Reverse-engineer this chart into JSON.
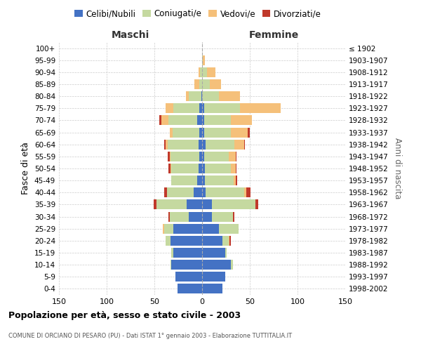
{
  "age_groups": [
    "0-4",
    "5-9",
    "10-14",
    "15-19",
    "20-24",
    "25-29",
    "30-34",
    "35-39",
    "40-44",
    "45-49",
    "50-54",
    "55-59",
    "60-64",
    "65-69",
    "70-74",
    "75-79",
    "80-84",
    "85-89",
    "90-94",
    "95-99",
    "100+"
  ],
  "birth_years": [
    "1998-2002",
    "1993-1997",
    "1988-1992",
    "1983-1987",
    "1978-1982",
    "1973-1977",
    "1968-1972",
    "1963-1967",
    "1958-1962",
    "1953-1957",
    "1948-1952",
    "1943-1947",
    "1938-1942",
    "1933-1937",
    "1928-1932",
    "1923-1927",
    "1918-1922",
    "1913-1917",
    "1908-1912",
    "1903-1907",
    "≤ 1902"
  ],
  "colors": {
    "celibi": "#4472c4",
    "coniugati": "#c5d9a0",
    "vedovi": "#f5c07a",
    "divorziati": "#c0392b"
  },
  "maschi": {
    "celibi": [
      26,
      28,
      32,
      30,
      33,
      30,
      14,
      16,
      9,
      5,
      4,
      3,
      4,
      3,
      5,
      3,
      1,
      0,
      0,
      0,
      0
    ],
    "coniugati": [
      0,
      0,
      1,
      2,
      5,
      10,
      20,
      32,
      28,
      27,
      28,
      30,
      32,
      28,
      30,
      27,
      13,
      3,
      2,
      0,
      0
    ],
    "vedovi": [
      0,
      0,
      0,
      0,
      0,
      1,
      0,
      0,
      0,
      0,
      1,
      1,
      2,
      3,
      8,
      8,
      3,
      5,
      2,
      0,
      0
    ],
    "divorziati": [
      0,
      0,
      0,
      0,
      0,
      0,
      1,
      3,
      3,
      0,
      2,
      2,
      2,
      0,
      2,
      0,
      0,
      0,
      0,
      0,
      0
    ]
  },
  "femmine": {
    "celibi": [
      21,
      24,
      30,
      24,
      21,
      18,
      10,
      10,
      4,
      3,
      3,
      2,
      4,
      2,
      2,
      2,
      0,
      0,
      0,
      0,
      0
    ],
    "coniugati": [
      0,
      0,
      2,
      2,
      7,
      20,
      22,
      46,
      40,
      30,
      27,
      26,
      30,
      28,
      28,
      38,
      18,
      8,
      5,
      1,
      0
    ],
    "vedovi": [
      0,
      0,
      0,
      0,
      1,
      0,
      0,
      0,
      2,
      2,
      5,
      7,
      10,
      18,
      22,
      42,
      22,
      12,
      9,
      2,
      0
    ],
    "divorziati": [
      0,
      0,
      0,
      0,
      1,
      0,
      2,
      3,
      5,
      2,
      1,
      1,
      1,
      2,
      0,
      0,
      0,
      0,
      0,
      0,
      0
    ]
  },
  "xlim": 150,
  "title": "Popolazione per età, sesso e stato civile - 2003",
  "subtitle": "COMUNE DI ORCIANO DI PESARO (PU) - Dati ISTAT 1° gennaio 2003 - Elaborazione TUTTITALIA.IT",
  "ylabel": "Fasce di età",
  "ylabel_right": "Anni di nascita",
  "legend_labels": [
    "Celibi/Nubili",
    "Coniugati/e",
    "Vedovi/e",
    "Divorziati/e"
  ],
  "maschi_label": "Maschi",
  "femmine_label": "Femmine",
  "femmine_color": "#333333",
  "maschi_color": "#333333"
}
